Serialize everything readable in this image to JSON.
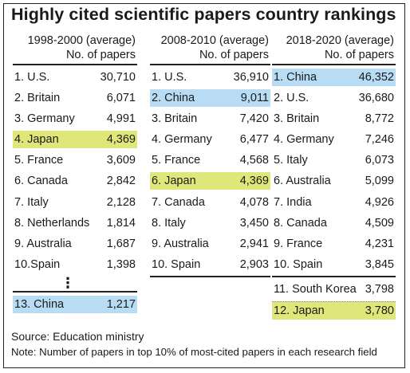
{
  "title": "Highly cited scientific papers country rankings",
  "columns": [
    {
      "period": "1998-2000 (average)",
      "subtitle": "No. of papers",
      "rows": [
        {
          "name": "1. U.S.",
          "value": "30,710",
          "hl": ""
        },
        {
          "name": "2. Britain",
          "value": "6,071",
          "hl": ""
        },
        {
          "name": "3. Germany",
          "value": "4,991",
          "hl": ""
        },
        {
          "name": "4. Japan",
          "value": "4,369",
          "hl": "green"
        },
        {
          "name": "5. France",
          "value": "3,609",
          "hl": ""
        },
        {
          "name": "6. Canada",
          "value": "2,842",
          "hl": ""
        },
        {
          "name": "7. Italy",
          "value": "2,128",
          "hl": ""
        },
        {
          "name": "8. Netherlands",
          "value": "1,814",
          "hl": ""
        },
        {
          "name": "9. Australia",
          "value": "1,687",
          "hl": ""
        },
        {
          "name": "10.Spain",
          "value": "1,398",
          "hl": ""
        }
      ],
      "ellipsis": "⋮",
      "extra": [
        {
          "name": "13. China",
          "value": "1,217",
          "hl": "blue"
        }
      ]
    },
    {
      "period": "2008-2010 (average)",
      "subtitle": "No. of papers",
      "rows": [
        {
          "name": "1. U.S.",
          "value": "36,910",
          "hl": ""
        },
        {
          "name": "2. China",
          "value": "9,011",
          "hl": "blue"
        },
        {
          "name": "3. Britain",
          "value": "7,420",
          "hl": ""
        },
        {
          "name": "4. Germany",
          "value": "6,477",
          "hl": ""
        },
        {
          "name": "5. France",
          "value": "4,568",
          "hl": ""
        },
        {
          "name": "6. Japan",
          "value": "4,369",
          "hl": "green"
        },
        {
          "name": "7. Canada",
          "value": "4,078",
          "hl": ""
        },
        {
          "name": "8. Italy",
          "value": "3,450",
          "hl": ""
        },
        {
          "name": "9. Australia",
          "value": "2,941",
          "hl": ""
        },
        {
          "name": "10. Spain",
          "value": "2,903",
          "hl": ""
        }
      ],
      "extra": []
    },
    {
      "period": "2018-2020 (average)",
      "subtitle": "No. of papers",
      "rows": [
        {
          "name": "1. China",
          "value": "46,352",
          "hl": "blue"
        },
        {
          "name": "2. U.S.",
          "value": "36,680",
          "hl": ""
        },
        {
          "name": "3. Britain",
          "value": "8,772",
          "hl": ""
        },
        {
          "name": "4. Germany",
          "value": "7,246",
          "hl": ""
        },
        {
          "name": "5. Italy",
          "value": "6,073",
          "hl": ""
        },
        {
          "name": "6. Australia",
          "value": "5,099",
          "hl": ""
        },
        {
          "name": "7. India",
          "value": "4,926",
          "hl": ""
        },
        {
          "name": "8. Canada",
          "value": "4,509",
          "hl": ""
        },
        {
          "name": "9. France",
          "value": "4,231",
          "hl": ""
        },
        {
          "name": "10. Spain",
          "value": "3,845",
          "hl": ""
        }
      ],
      "extra": [
        {
          "name": "11. South Korea",
          "value": "3,798",
          "hl": ""
        },
        {
          "name": "12. Japan",
          "value": "3,780",
          "hl": "green"
        }
      ]
    }
  ],
  "source": "Source: Education ministry",
  "note": "Note: Number of papers in top 10% of most-cited papers in each research field"
}
